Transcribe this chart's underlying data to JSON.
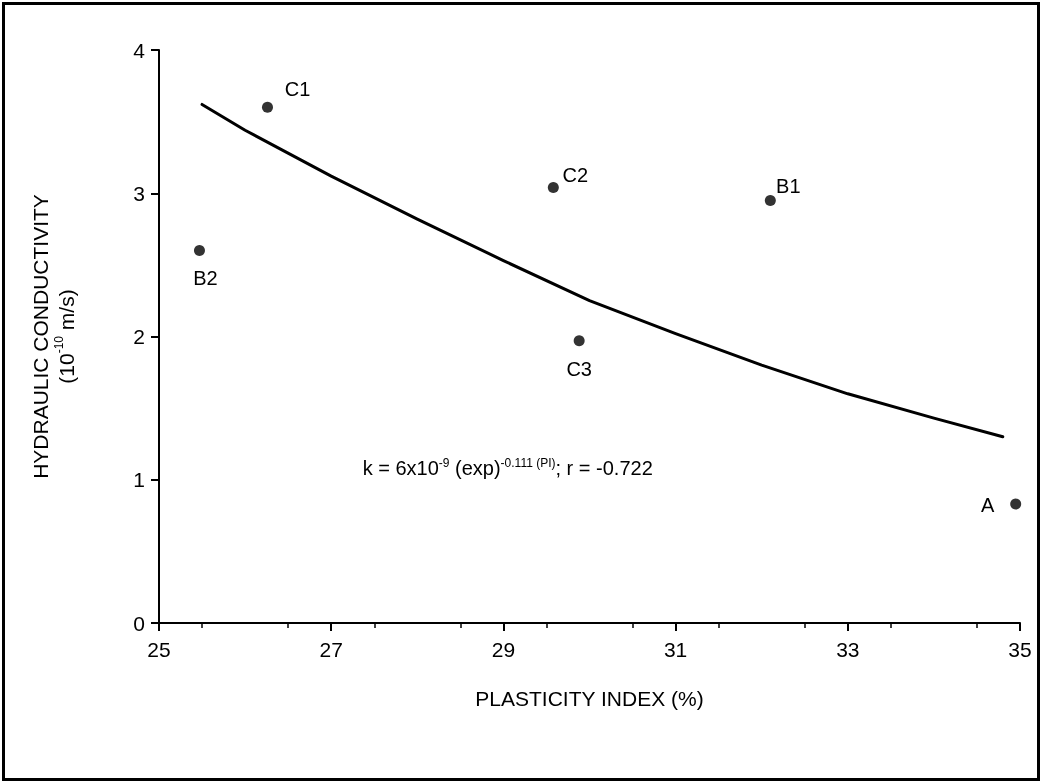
{
  "chart_data": {
    "type": "scatter",
    "xlabel": "PLASTICITY INDEX (%)",
    "ylabel": "HYDRAULIC CONDUCTIVITY\n(10$^{-10}$ m/s)",
    "xlim": [
      25,
      35
    ],
    "xticks": [
      25,
      27,
      29,
      31,
      33,
      35
    ],
    "ylim": [
      0,
      4
    ],
    "yticks": [
      0,
      1,
      2,
      3,
      4
    ],
    "series": [
      {
        "color": "#000000",
        "marker": "circle",
        "x": [
          26.26,
          25.47,
          29.58,
          32.1,
          29.88,
          34.95
        ],
        "values": [
          3.6,
          2.6,
          3.04,
          2.95,
          1.97,
          0.83
        ]
      },
      {
        "type": "line",
        "color": "#000000",
        "marker": "none",
        "line_style": "solid",
        "x": [
          25.5,
          26,
          27,
          28,
          29,
          30,
          31,
          32,
          33,
          34,
          34.8
        ],
        "values": [
          3.62,
          3.44,
          3.12,
          2.82,
          2.53,
          2.25,
          2.02,
          1.8,
          1.6,
          1.43,
          1.3
        ]
      }
    ],
    "annotations": [
      {
        "text": "C1",
        "x": 26.26,
        "y": 3.6
      },
      {
        "text": "B2",
        "x": 25.47,
        "y": 2.6
      },
      {
        "text": "C2",
        "x": 29.58,
        "y": 3.04
      },
      {
        "text": "B1",
        "x": 32.1,
        "y": 2.95
      },
      {
        "text": "C3",
        "x": 29.88,
        "y": 1.97
      },
      {
        "text": "A",
        "x": 34.95,
        "y": 0.83
      },
      "k = 6x10$^{-9}$ (exp)$^{-0.111 (PI)}$; r = -0.722"
    ]
  }
}
